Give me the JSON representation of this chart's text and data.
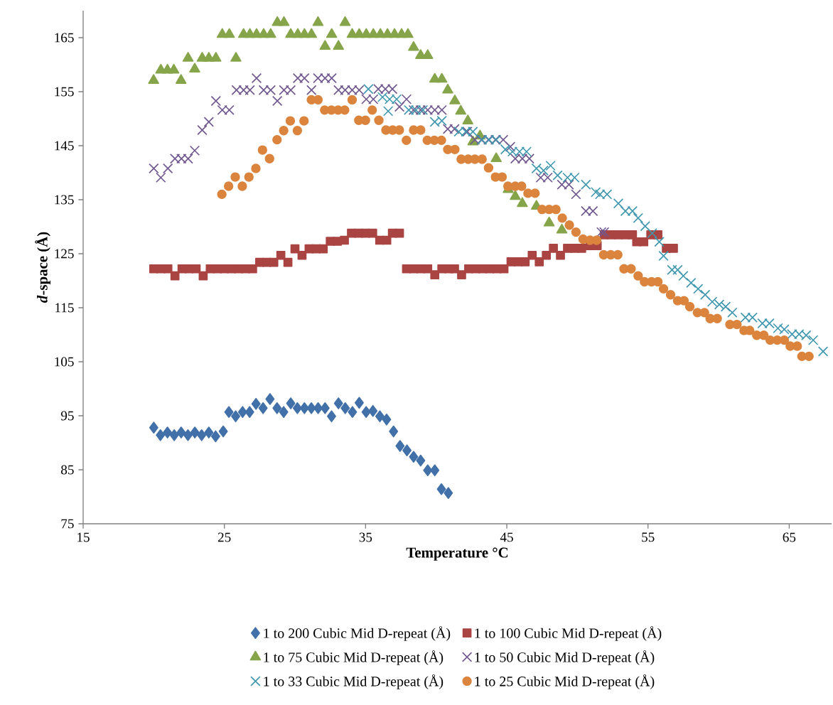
{
  "chart_data": {
    "type": "scatter",
    "xlabel": "Temperature °C",
    "ylabel": "*d*-space (Å)",
    "xlim": [
      15,
      68
    ],
    "ylim": [
      75,
      170
    ],
    "xticks": [
      15,
      25,
      35,
      45,
      55,
      65
    ],
    "yticks": [
      75,
      85,
      95,
      105,
      115,
      125,
      135,
      145,
      155,
      165
    ],
    "grid": false,
    "legend": "bottom",
    "series": [
      {
        "name": "1 to 200 Cubic Mid D-repeat (Å)",
        "color": "#4270a8",
        "marker": "diamond",
        "x": [
          20.0,
          20.47,
          20.97,
          21.45,
          21.94,
          22.42,
          22.91,
          23.39,
          23.9,
          24.38,
          24.92,
          25.32,
          25.8,
          26.29,
          26.79,
          27.24,
          27.74,
          28.23,
          28.73,
          29.2,
          29.7,
          30.17,
          30.67,
          31.16,
          31.64,
          32.13,
          32.59,
          33.08,
          33.56,
          34.07,
          34.55,
          35.04,
          35.52,
          36.01,
          36.49,
          36.98,
          37.44,
          37.93,
          38.4,
          38.9,
          39.4,
          39.9,
          40.37,
          40.86
        ],
        "values": [
          92.8,
          91.4,
          91.9,
          91.4,
          91.9,
          91.4,
          91.9,
          91.4,
          91.9,
          91.2,
          92.1,
          95.7,
          94.9,
          95.7,
          95.7,
          97.2,
          96.4,
          98.1,
          96.4,
          95.7,
          97.3,
          96.4,
          96.4,
          96.4,
          96.4,
          96.4,
          94.9,
          97.3,
          96.4,
          95.7,
          97.4,
          95.7,
          95.9,
          94.9,
          94.3,
          92.1,
          89.4,
          88.6,
          87.4,
          86.7,
          84.9,
          84.9,
          81.4,
          80.7
        ]
      },
      {
        "name": "1 to 100 Cubic Mid D-repeat (Å)",
        "color": "#a94442",
        "marker": "square",
        "x": [
          20.0,
          20.5,
          21.0,
          21.5,
          22.0,
          22.5,
          23.0,
          23.5,
          24.0,
          24.5,
          25.0,
          25.5,
          26.0,
          26.5,
          27.0,
          27.5,
          28.0,
          28.5,
          29.0,
          29.5,
          30.0,
          30.5,
          31.0,
          31.5,
          32.0,
          32.5,
          33.0,
          33.5,
          34.0,
          34.5,
          35.0,
          35.5,
          36.0,
          36.5,
          36.9,
          37.4,
          37.9,
          38.4,
          38.9,
          39.4,
          39.9,
          40.4,
          40.9,
          41.3,
          41.8,
          42.3,
          42.8,
          43.3,
          43.8,
          44.3,
          44.8,
          45.3,
          45.8,
          46.3,
          46.8,
          47.3,
          47.8,
          48.3,
          48.8,
          49.3,
          49.8,
          50.3,
          50.9,
          51.4,
          51.9,
          52.4,
          52.9,
          53.4,
          53.9,
          54.2,
          54.7,
          55.2,
          55.7,
          56.3,
          56.8
        ],
        "values": [
          122.2,
          122.2,
          122.2,
          120.9,
          122.2,
          122.2,
          122.2,
          120.9,
          122.2,
          122.2,
          122.2,
          122.2,
          122.2,
          122.2,
          122.2,
          123.4,
          123.4,
          123.4,
          124.7,
          123.4,
          125.9,
          124.7,
          125.9,
          125.9,
          125.9,
          127.3,
          127.3,
          127.5,
          128.8,
          128.8,
          128.8,
          128.8,
          127.5,
          127.5,
          128.8,
          128.8,
          122.2,
          122.2,
          122.2,
          122.2,
          121.1,
          122.2,
          122.2,
          122.2,
          121.1,
          122.2,
          122.2,
          122.2,
          122.2,
          122.2,
          122.2,
          123.5,
          123.5,
          123.5,
          124.7,
          123.5,
          124.7,
          126.0,
          124.7,
          126.0,
          126.0,
          126.0,
          126.5,
          126.5,
          128.5,
          128.5,
          128.5,
          128.5,
          128.5,
          127.2,
          127.2,
          128.5,
          128.5,
          126.0,
          126.0
        ]
      },
      {
        "name": "1 to 75 Cubic Mid D-repeat (Å)",
        "color": "#86a44a",
        "marker": "triangle",
        "x": [
          19.99,
          20.5,
          20.97,
          21.42,
          21.93,
          22.43,
          22.9,
          23.43,
          23.9,
          24.4,
          24.85,
          25.35,
          25.82,
          26.36,
          26.81,
          27.28,
          27.78,
          28.28,
          28.75,
          29.22,
          29.7,
          30.2,
          30.67,
          31.17,
          31.63,
          32.13,
          32.6,
          33.08,
          33.55,
          34.05,
          34.55,
          35.05,
          35.55,
          36.05,
          36.55,
          37.05,
          37.55,
          38.0,
          38.4,
          38.9,
          39.4,
          39.9,
          40.4,
          40.82,
          41.32,
          41.74,
          42.24,
          42.6,
          43.1,
          44.25,
          45.1,
          45.6,
          46.1,
          47.1,
          48.0,
          48.9
        ],
        "values": [
          157.1,
          159.0,
          159.0,
          159.0,
          157.1,
          161.2,
          159.2,
          161.2,
          161.2,
          161.2,
          165.6,
          165.6,
          161.2,
          165.6,
          165.6,
          165.6,
          165.6,
          165.6,
          167.8,
          167.8,
          165.6,
          165.6,
          165.6,
          165.6,
          167.8,
          163.4,
          165.6,
          163.4,
          167.8,
          165.6,
          165.6,
          165.6,
          165.6,
          165.6,
          165.6,
          165.6,
          165.6,
          165.6,
          163.2,
          161.7,
          161.7,
          157.3,
          157.3,
          155.3,
          153.3,
          151.4,
          149.6,
          145.7,
          146.8,
          142.6,
          136.9,
          135.6,
          134.3,
          133.8,
          130.7,
          129.4
        ]
      },
      {
        "name": "1 to 50 Cubic Mid D-repeat (Å)",
        "color": "#71588f",
        "marker": "cross",
        "x": [
          20.0,
          20.5,
          21.0,
          21.5,
          21.96,
          22.43,
          22.9,
          23.43,
          23.9,
          24.4,
          24.85,
          25.35,
          25.86,
          26.36,
          26.81,
          27.28,
          27.78,
          28.28,
          28.75,
          29.22,
          29.7,
          30.2,
          30.67,
          31.17,
          31.63,
          32.13,
          32.6,
          33.08,
          33.55,
          34.05,
          34.55,
          35.05,
          35.55,
          35.9,
          36.4,
          36.9,
          37.4,
          37.9,
          38.4,
          38.9,
          39.4,
          39.9,
          40.4,
          40.82,
          41.3,
          42.2,
          42.74,
          43.2,
          43.7,
          44.2,
          44.75,
          45.25,
          45.6,
          46.1,
          46.6,
          47.4,
          47.9,
          48.9,
          49.4,
          49.9,
          50.6,
          51.1,
          51.7,
          51.9
        ],
        "values": [
          140.8,
          139.1,
          140.8,
          142.6,
          142.6,
          142.6,
          144.1,
          147.9,
          149.4,
          153.3,
          151.6,
          151.6,
          155.3,
          155.3,
          155.3,
          157.5,
          155.3,
          155.3,
          153.3,
          155.3,
          155.3,
          157.5,
          157.5,
          155.3,
          157.5,
          157.5,
          157.5,
          155.3,
          155.3,
          155.3,
          155.3,
          153.6,
          153.6,
          155.5,
          155.5,
          155.5,
          152.2,
          153.6,
          151.6,
          151.6,
          151.6,
          151.6,
          151.6,
          148.1,
          148.1,
          147.6,
          146.1,
          146.1,
          146.1,
          146.1,
          146.1,
          144.8,
          142.6,
          142.6,
          142.6,
          139.1,
          139.1,
          137.8,
          137.8,
          136.0,
          132.9,
          132.9,
          129.0,
          129.0
        ]
      },
      {
        "name": "1 to 33 Cubic Mid D-repeat (Å)",
        "color": "#4198af",
        "marker": "cross",
        "x": [
          35.2,
          36.2,
          36.6,
          36.7,
          37.2,
          38.06,
          38.56,
          39.06,
          39.9,
          40.4,
          41.6,
          42.1,
          42.6,
          43.25,
          43.75,
          44.25,
          44.9,
          45.4,
          45.9,
          46.4,
          47.1,
          47.6,
          48.1,
          48.6,
          49.3,
          49.8,
          50.6,
          51.3,
          51.6,
          52.1,
          52.9,
          53.4,
          53.9,
          54.3,
          54.8,
          55.3,
          55.8,
          56.1,
          56.7,
          57.1,
          57.5,
          58.05,
          58.55,
          59.05,
          59.55,
          60.05,
          60.5,
          60.97,
          61.9,
          62.4,
          63.1,
          63.6,
          64.2,
          64.65,
          65.2,
          65.7,
          66.2,
          66.7,
          67.4
        ],
        "values": [
          155.5,
          154.0,
          151.4,
          153.6,
          153.6,
          151.6,
          151.6,
          151.6,
          149.4,
          149.6,
          147.6,
          147.6,
          147.6,
          146.1,
          146.1,
          146.1,
          144.3,
          143.9,
          143.9,
          143.9,
          140.8,
          140.4,
          141.3,
          139.5,
          139.1,
          139.1,
          137.8,
          136.4,
          136.0,
          136.0,
          134.3,
          132.9,
          132.9,
          131.6,
          130.1,
          128.8,
          127.2,
          124.6,
          122.0,
          122.0,
          120.9,
          119.6,
          118.5,
          117.4,
          116.1,
          115.6,
          115.2,
          114.1,
          113.2,
          113.2,
          112.1,
          112.1,
          111.2,
          111.0,
          110.1,
          110.1,
          109.9,
          109.0,
          106.9
        ]
      },
      {
        "name": "1 to 25 Cubic Mid D-repeat (Å)",
        "color": "#db843d",
        "marker": "circle",
        "x": [
          24.82,
          25.3,
          25.77,
          26.27,
          26.74,
          27.23,
          27.7,
          28.2,
          28.73,
          29.2,
          29.67,
          30.17,
          30.64,
          31.16,
          31.63,
          32.1,
          32.58,
          33.05,
          33.52,
          34.05,
          34.52,
          34.99,
          35.47,
          35.94,
          36.44,
          36.92,
          37.39,
          37.89,
          38.4,
          38.9,
          39.37,
          39.87,
          40.37,
          40.82,
          41.32,
          41.77,
          42.27,
          42.74,
          43.25,
          43.71,
          44.2,
          44.67,
          45.08,
          45.6,
          46.05,
          46.5,
          47.0,
          47.5,
          48.0,
          48.48,
          48.93,
          49.43,
          49.9,
          50.4,
          50.9,
          51.36,
          51.86,
          52.36,
          52.86,
          53.3,
          53.8,
          54.3,
          54.75,
          55.25,
          55.7,
          56.1,
          56.6,
          57.1,
          57.55,
          57.96,
          58.5,
          59.0,
          59.4,
          59.9,
          60.8,
          61.3,
          61.8,
          62.2,
          62.7,
          63.2,
          63.65,
          64.15,
          64.65,
          65.07,
          65.57,
          65.9,
          66.4
        ],
        "values": [
          136.0,
          137.5,
          139.2,
          137.5,
          139.2,
          140.8,
          144.2,
          142.6,
          146.1,
          147.8,
          149.6,
          147.8,
          149.6,
          153.5,
          153.5,
          151.6,
          151.6,
          151.6,
          151.6,
          153.5,
          149.7,
          149.7,
          151.6,
          149.7,
          147.9,
          147.9,
          147.9,
          146.0,
          147.9,
          147.9,
          146.0,
          146.0,
          146.0,
          144.3,
          144.3,
          142.5,
          142.5,
          142.5,
          142.5,
          140.9,
          139.2,
          139.2,
          137.5,
          137.5,
          137.5,
          136.2,
          136.2,
          133.2,
          133.2,
          133.2,
          131.6,
          130.3,
          129.0,
          127.7,
          127.5,
          127.5,
          124.8,
          124.8,
          124.8,
          122.2,
          122.2,
          120.9,
          119.8,
          119.8,
          119.8,
          118.5,
          117.4,
          116.3,
          116.3,
          115.2,
          114.1,
          114.1,
          113.0,
          113.0,
          111.9,
          111.9,
          110.8,
          110.8,
          109.9,
          109.9,
          109.0,
          109.0,
          109.0,
          107.9,
          107.9,
          106.0,
          106.0
        ]
      }
    ]
  }
}
